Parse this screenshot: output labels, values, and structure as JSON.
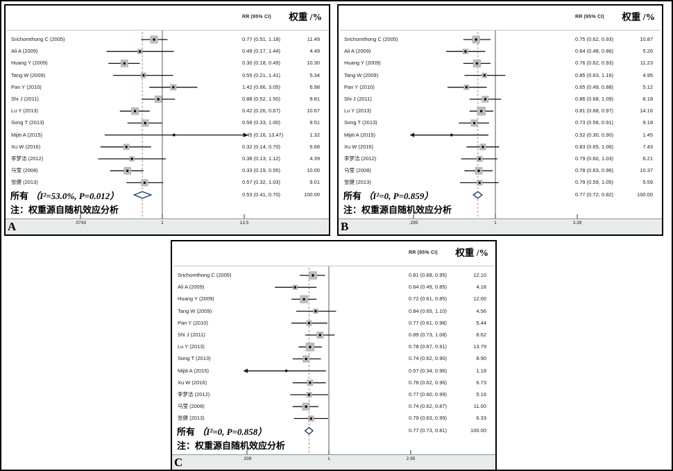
{
  "style": {
    "background": "#ffffff",
    "panel_border": "#000000",
    "box_color": "#bdbdbd",
    "box_border": "#9c9c9c",
    "ci_line_color": "#111111",
    "marker_color": "#000000",
    "null_line_color": "#666666",
    "pooled_line_color": "#cf8e8e",
    "diamond_color": "#1f3a68",
    "band_color": "#e7eceb"
  },
  "chart_data": [
    {
      "id": "A",
      "type": "scatter",
      "subtype": "forest-plot",
      "effect_label": "RR (95% CI)",
      "weight_label": "权重 /%",
      "note": "注：权重源自随机效应分析",
      "x_axis": {
        "scale": "log",
        "min": 0.0743,
        "max": 13.5,
        "null_line": 1,
        "ticks": [
          ".0743",
          "1",
          "13.5"
        ],
        "tick_values": [
          0.0743,
          1,
          13.5
        ]
      },
      "overall": {
        "label": "所有",
        "heterogeneity": "（I²=53.0%, P=0.012）",
        "est": 0.53,
        "lo": 0.41,
        "hi": 0.7,
        "ci_text": "0.53 (0.41, 0.70)",
        "weight_text": "100.00"
      },
      "studies": [
        {
          "label": "Srichomthong C (2005)",
          "est": 0.77,
          "lo": 0.51,
          "hi": 1.18,
          "ci_text": "0.77 (0.51, 1.18)",
          "weight": 11.49,
          "weight_text": "11.49",
          "arrow": null
        },
        {
          "label": "Ali A (2009)",
          "est": 0.49,
          "lo": 0.17,
          "hi": 1.44,
          "ci_text": "0.49 (0.17, 1.44)",
          "weight": 4.49,
          "weight_text": "4.49",
          "arrow": null
        },
        {
          "label": "Huang Y (2009)",
          "est": 0.3,
          "lo": 0.18,
          "hi": 0.49,
          "ci_text": "0.30 (0.18, 0.49)",
          "weight": 10.3,
          "weight_text": "10.30",
          "arrow": null
        },
        {
          "label": "Tang W (2009)",
          "est": 0.55,
          "lo": 0.21,
          "hi": 1.41,
          "ci_text": "0.55 (0.21, 1.41)",
          "weight": 5.34,
          "weight_text": "5.34",
          "arrow": null
        },
        {
          "label": "Pan Y (2010)",
          "est": 1.42,
          "lo": 0.66,
          "hi": 3.05,
          "ci_text": "1.42 (0.66, 3.05)",
          "weight": 6.98,
          "weight_text": "6.98",
          "arrow": null
        },
        {
          "label": "Shi J (2011)",
          "est": 0.88,
          "lo": 0.52,
          "hi": 1.5,
          "ci_text": "0.88 (0.52, 1.50)",
          "weight": 9.81,
          "weight_text": "9.81",
          "arrow": null
        },
        {
          "label": "Lu Y (2013)",
          "est": 0.42,
          "lo": 0.26,
          "hi": 0.67,
          "ci_text": "0.42 (0.26, 0.67)",
          "weight": 10.67,
          "weight_text": "10.67",
          "arrow": null
        },
        {
          "label": "Song T (2013)",
          "est": 0.58,
          "lo": 0.33,
          "hi": 1.0,
          "ci_text": "0.58 (0.33, 1.00)",
          "weight": 9.51,
          "weight_text": "9.51",
          "arrow": null
        },
        {
          "label": "Mijiti A (2015)",
          "est": 1.45,
          "lo": 0.16,
          "hi": 13.47,
          "ci_text": "1.45 (0.16, 13.47)",
          "weight": 1.32,
          "weight_text": "1.32",
          "arrow": "right"
        },
        {
          "label": "Xu W (2016)",
          "est": 0.32,
          "lo": 0.14,
          "hi": 0.7,
          "ci_text": "0.32 (0.14, 0.70)",
          "weight": 6.68,
          "weight_text": "6.68",
          "arrow": null
        },
        {
          "label": "李梦洁 (2012)",
          "est": 0.38,
          "lo": 0.13,
          "hi": 1.12,
          "ci_text": "0.38 (0.13, 1.12)",
          "weight": 4.39,
          "weight_text": "4.39",
          "arrow": null
        },
        {
          "label": "马莹 (2008)",
          "est": 0.33,
          "lo": 0.19,
          "hi": 0.55,
          "ci_text": "0.33 (0.19, 0.55)",
          "weight": 10.0,
          "weight_text": "10.00",
          "arrow": null
        },
        {
          "label": "张健 (2013)",
          "est": 0.57,
          "lo": 0.32,
          "hi": 1.03,
          "ci_text": "0.57 (0.32, 1.03)",
          "weight": 9.01,
          "weight_text": "9.01",
          "arrow": null
        }
      ]
    },
    {
      "id": "B",
      "type": "scatter",
      "subtype": "forest-plot",
      "effect_label": "RR (95% CI)",
      "weight_label": "权重 /%",
      "note": "注：权重源自随机效应分析",
      "x_axis": {
        "scale": "log",
        "min": 0.295,
        "max": 3.39,
        "null_line": 1,
        "ticks": [
          ".295",
          "1",
          "3.39"
        ],
        "tick_values": [
          0.295,
          1,
          3.39
        ]
      },
      "overall": {
        "label": "所有",
        "heterogeneity": "（I²=0, P=0.859）",
        "est": 0.77,
        "lo": 0.72,
        "hi": 0.82,
        "ci_text": "0.77 (0.72, 0.82)",
        "weight_text": "100.00"
      },
      "studies": [
        {
          "label": "Srichomthong C (2005)",
          "est": 0.75,
          "lo": 0.62,
          "hi": 0.93,
          "ci_text": "0.75 (0.62, 0.93)",
          "weight": 10.87,
          "weight_text": "10.87",
          "arrow": null
        },
        {
          "label": "Ali A (2009)",
          "est": 0.64,
          "lo": 0.48,
          "hi": 0.86,
          "ci_text": "0.64 (0.48, 0.86)",
          "weight": 5.26,
          "weight_text": "5.26",
          "arrow": null
        },
        {
          "label": "Huang Y (2009)",
          "est": 0.76,
          "lo": 0.62,
          "hi": 0.93,
          "ci_text": "0.76 (0.62, 0.93)",
          "weight": 11.23,
          "weight_text": "11.23",
          "arrow": null
        },
        {
          "label": "Tang W (2009)",
          "est": 0.85,
          "lo": 0.63,
          "hi": 1.16,
          "ci_text": "0.85 (0.63, 1.16)",
          "weight": 4.95,
          "weight_text": "4.95",
          "arrow": null
        },
        {
          "label": "Pan Y (2010)",
          "est": 0.65,
          "lo": 0.49,
          "hi": 0.88,
          "ci_text": "0.65 (0.49, 0.88)",
          "weight": 5.12,
          "weight_text": "5.12",
          "arrow": null
        },
        {
          "label": "Shi J (2011)",
          "est": 0.86,
          "lo": 0.68,
          "hi": 1.09,
          "ci_text": "0.86 (0.68, 1.09)",
          "weight": 8.18,
          "weight_text": "8.18",
          "arrow": null
        },
        {
          "label": "Lu Y (2013)",
          "est": 0.81,
          "lo": 0.68,
          "hi": 0.97,
          "ci_text": "0.81 (0.68, 0.97)",
          "weight": 14.16,
          "weight_text": "14.16",
          "arrow": null
        },
        {
          "label": "Song T (2013)",
          "est": 0.73,
          "lo": 0.58,
          "hi": 0.91,
          "ci_text": "0.73 (0.58, 0.91)",
          "weight": 9.18,
          "weight_text": "9.18",
          "arrow": null
        },
        {
          "label": "Mijiti A (2015)",
          "est": 0.52,
          "lo": 0.3,
          "hi": 0.9,
          "ci_text": "0.52 (0.30, 0.90)",
          "weight": 1.45,
          "weight_text": "1.45",
          "arrow": "left"
        },
        {
          "label": "Xu W (2016)",
          "est": 0.83,
          "lo": 0.65,
          "hi": 1.06,
          "ci_text": "0.83 (0.65, 1.06)",
          "weight": 7.43,
          "weight_text": "7.43",
          "arrow": null
        },
        {
          "label": "李梦洁 (2012)",
          "est": 0.79,
          "lo": 0.6,
          "hi": 1.03,
          "ci_text": "0.79 (0.60, 1.03)",
          "weight": 6.21,
          "weight_text": "6.21",
          "arrow": null
        },
        {
          "label": "马莹 (2008)",
          "est": 0.78,
          "lo": 0.63,
          "hi": 0.96,
          "ci_text": "0.78 (0.63, 0.96)",
          "weight": 10.37,
          "weight_text": "10.37",
          "arrow": null
        },
        {
          "label": "张健 (2013)",
          "est": 0.79,
          "lo": 0.59,
          "hi": 1.05,
          "ci_text": "0.79 (0.59, 1.05)",
          "weight": 5.59,
          "weight_text": "5.59",
          "arrow": null
        }
      ]
    },
    {
      "id": "C",
      "type": "scatter",
      "subtype": "forest-plot",
      "effect_label": "RR (95% CI)",
      "weight_label": "权重 /%",
      "note": "注：权重源自随机效应分析",
      "x_axis": {
        "scale": "log",
        "min": 0.339,
        "max": 2.95,
        "null_line": 1,
        "ticks": [
          ".339",
          "1",
          "2.95"
        ],
        "tick_values": [
          0.339,
          1,
          2.95
        ]
      },
      "overall": {
        "label": "所有",
        "heterogeneity": "（I²=0, P=0.858）",
        "est": 0.77,
        "lo": 0.73,
        "hi": 0.81,
        "ci_text": "0.77 (0.73, 0.81)",
        "weight_text": "100.00"
      },
      "studies": [
        {
          "label": "Srichomthong C (2005)",
          "est": 0.81,
          "lo": 0.68,
          "hi": 0.95,
          "ci_text": "0.81 (0.68, 0.95)",
          "weight": 12.1,
          "weight_text": "12.10",
          "arrow": null
        },
        {
          "label": "Ali A (2009)",
          "est": 0.64,
          "lo": 0.49,
          "hi": 0.85,
          "ci_text": "0.64 (0.49, 0.85)",
          "weight": 4.18,
          "weight_text": "4.18",
          "arrow": null
        },
        {
          "label": "Huang Y (2009)",
          "est": 0.72,
          "lo": 0.61,
          "hi": 0.85,
          "ci_text": "0.72 (0.61, 0.85)",
          "weight": 12.0,
          "weight_text": "12.00",
          "arrow": null
        },
        {
          "label": "Tang W (2009)",
          "est": 0.84,
          "lo": 0.65,
          "hi": 1.1,
          "ci_text": "0.84 (0.65, 1.10)",
          "weight": 4.56,
          "weight_text": "4.56",
          "arrow": null
        },
        {
          "label": "Pan Y (2010)",
          "est": 0.77,
          "lo": 0.61,
          "hi": 0.98,
          "ci_text": "0.77 (0.61, 0.98)",
          "weight": 5.44,
          "weight_text": "5.44",
          "arrow": null
        },
        {
          "label": "Shi J (2011)",
          "est": 0.89,
          "lo": 0.73,
          "hi": 1.08,
          "ci_text": "0.89 (0.73, 1.08)",
          "weight": 8.62,
          "weight_text": "8.62",
          "arrow": null
        },
        {
          "label": "Lu Y (2013)",
          "est": 0.78,
          "lo": 0.67,
          "hi": 0.91,
          "ci_text": "0.78 (0.67, 0.91)",
          "weight": 13.79,
          "weight_text": "13.79",
          "arrow": null
        },
        {
          "label": "Song T (2013)",
          "est": 0.74,
          "lo": 0.62,
          "hi": 0.9,
          "ci_text": "0.74 (0.62, 0.90)",
          "weight": 8.9,
          "weight_text": "8.90",
          "arrow": null
        },
        {
          "label": "Mijiti A (2015)",
          "est": 0.57,
          "lo": 0.34,
          "hi": 0.96,
          "ci_text": "0.57 (0.34, 0.96)",
          "weight": 1.18,
          "weight_text": "1.18",
          "arrow": "left"
        },
        {
          "label": "Xu W (2016)",
          "est": 0.78,
          "lo": 0.62,
          "hi": 0.96,
          "ci_text": "0.78 (0.62, 0.96)",
          "weight": 6.73,
          "weight_text": "6.73",
          "arrow": null
        },
        {
          "label": "李梦洁 (2012)",
          "est": 0.77,
          "lo": 0.6,
          "hi": 0.99,
          "ci_text": "0.77 (0.60, 0.99)",
          "weight": 5.16,
          "weight_text": "5.16",
          "arrow": null
        },
        {
          "label": "马莹 (2008)",
          "est": 0.74,
          "lo": 0.62,
          "hi": 0.87,
          "ci_text": "0.74 (0.62, 0.87)",
          "weight": 11.0,
          "weight_text": "11.00",
          "arrow": null
        },
        {
          "label": "张健 (2013)",
          "est": 0.79,
          "lo": 0.63,
          "hi": 0.99,
          "ci_text": "0.79 (0.63, 0.99)",
          "weight": 6.33,
          "weight_text": "6.33",
          "arrow": null
        }
      ]
    }
  ]
}
